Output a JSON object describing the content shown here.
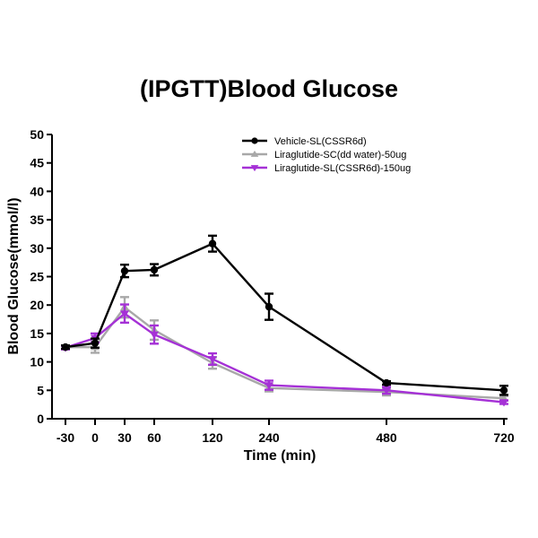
{
  "chart_data": {
    "type": "line",
    "title": "(IPGTT)Blood Glucose",
    "xlabel": "Time (min)",
    "ylabel": "Blood Glucose(mmol/l)",
    "ylim": [
      0,
      50
    ],
    "yticks": [
      0,
      5,
      10,
      15,
      20,
      25,
      30,
      35,
      40,
      45,
      50
    ],
    "x_categories": [
      "-30",
      "0",
      "30",
      "60",
      "120",
      "240",
      "480",
      "720"
    ],
    "grid": false,
    "legend_position": "top-right",
    "series": [
      {
        "name": "Vehicle-SL(CSSR6d)",
        "color": "#000000",
        "marker": "circle",
        "values": [
          12.6,
          13.3,
          26.0,
          26.2,
          30.8,
          19.7,
          6.3,
          5.0
        ],
        "errors": [
          0.3,
          0.8,
          1.1,
          1.0,
          1.4,
          2.3,
          0.3,
          0.8
        ]
      },
      {
        "name": "Liraglutide-SC(dd water)-50ug",
        "color": "#a8a8a8",
        "marker": "triangle-up",
        "values": [
          12.6,
          12.6,
          19.6,
          15.6,
          9.8,
          5.4,
          4.7,
          3.6
        ],
        "errors": [
          0.3,
          1.0,
          1.8,
          1.7,
          1.0,
          0.6,
          0.6,
          0.4
        ]
      },
      {
        "name": "Liraglutide-SL(CSSR6d)-150ug",
        "color": "#a531d6",
        "marker": "triangle-down",
        "values": [
          12.5,
          14.2,
          18.5,
          14.8,
          10.5,
          5.9,
          5.0,
          2.9
        ],
        "errors": [
          0.3,
          0.8,
          1.6,
          1.6,
          1.0,
          0.8,
          0.6,
          0.3
        ]
      }
    ]
  }
}
